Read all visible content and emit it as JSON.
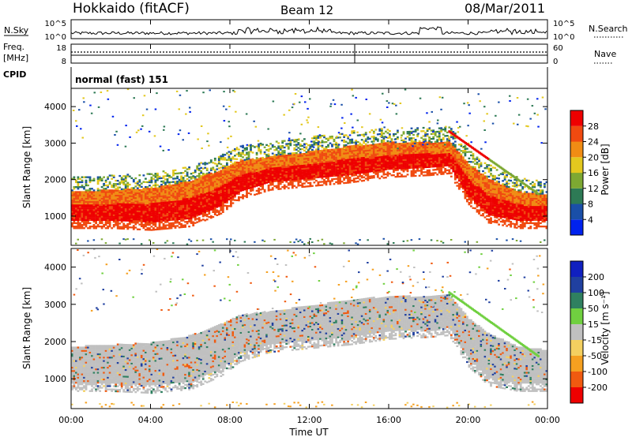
{
  "header": {
    "station": "Hokkaido (fitACF)",
    "beam": "Beam 12",
    "date": "08/Mar/2011"
  },
  "status_panels": {
    "nsky": {
      "label": "N.Sky",
      "tick_top": "10^5",
      "tick_bottom": "10^0"
    },
    "nsearch": {
      "label": "N.Search",
      "tick_top": "10^5",
      "tick_bottom": "10^0"
    },
    "freq": {
      "label_line1": "Freq.",
      "label_line2": "[MHz]",
      "tick_top": "18",
      "tick_bottom": "8"
    },
    "nave": {
      "label": "Nave",
      "tick_top": "60",
      "tick_bottom": "0"
    },
    "cpid": {
      "label": "CPID",
      "text": "normal (fast) 151"
    }
  },
  "chart_data": [
    {
      "type": "heatmap",
      "panel": "power",
      "ylabel": "Slant Range [km]",
      "ylim": [
        200,
        4500
      ],
      "yticks": [
        "1000",
        "2000",
        "3000",
        "4000"
      ],
      "colorbar_label": "Power [dB]",
      "colorbar_ticks": [
        "4",
        "8",
        "12",
        "16",
        "20",
        "24",
        "28"
      ],
      "colorscale": [
        "#0022ee",
        "#1a4fa8",
        "#2d7a55",
        "#7da832",
        "#e3c81e",
        "#f08c14",
        "#f04a10",
        "#ee0000"
      ],
      "echo_band_km": [
        {
          "t": 0,
          "lo": 850,
          "hi": 1650
        },
        {
          "t": 2,
          "lo": 850,
          "hi": 1700
        },
        {
          "t": 4,
          "lo": 800,
          "hi": 1750
        },
        {
          "t": 6,
          "lo": 900,
          "hi": 1950
        },
        {
          "t": 7.5,
          "lo": 1250,
          "hi": 2250
        },
        {
          "t": 8.5,
          "lo": 1650,
          "hi": 2500
        },
        {
          "t": 10,
          "lo": 1900,
          "hi": 2600
        },
        {
          "t": 12,
          "lo": 2000,
          "hi": 2750
        },
        {
          "t": 14,
          "lo": 2100,
          "hi": 2900
        },
        {
          "t": 16,
          "lo": 2250,
          "hi": 3000
        },
        {
          "t": 18,
          "lo": 2300,
          "hi": 3000
        },
        {
          "t": 19,
          "lo": 2350,
          "hi": 3050
        },
        {
          "t": 20,
          "lo": 1500,
          "hi": 2400
        },
        {
          "t": 21,
          "lo": 1000,
          "hi": 2000
        },
        {
          "t": 22.5,
          "lo": 850,
          "hi": 1650
        },
        {
          "t": 24,
          "lo": 850,
          "hi": 1550
        }
      ]
    },
    {
      "type": "heatmap",
      "panel": "velocity",
      "ylabel": "Slant Range [km]",
      "xlabel": "Time UT",
      "ylim": [
        200,
        4500
      ],
      "yticks": [
        "1000",
        "2000",
        "3000",
        "4000"
      ],
      "xticks": [
        "00:00",
        "04:00",
        "08:00",
        "12:00",
        "16:00",
        "20:00",
        "00:00"
      ],
      "xlim": [
        0,
        24
      ],
      "colorbar_label": "Velocity [m s⁻¹]",
      "colorbar_ticks": [
        "-200",
        "-100",
        "-50",
        "-15",
        "15",
        "50",
        "100",
        "200"
      ],
      "colorscale": [
        "#ee0000",
        "#f05a10",
        "#f5a020",
        "#f4d060",
        "#c0c0c0",
        "#70d040",
        "#2f8060",
        "#2040a0",
        "#1020c0"
      ],
      "ground_scatter_color": "#c0c0c0"
    }
  ]
}
